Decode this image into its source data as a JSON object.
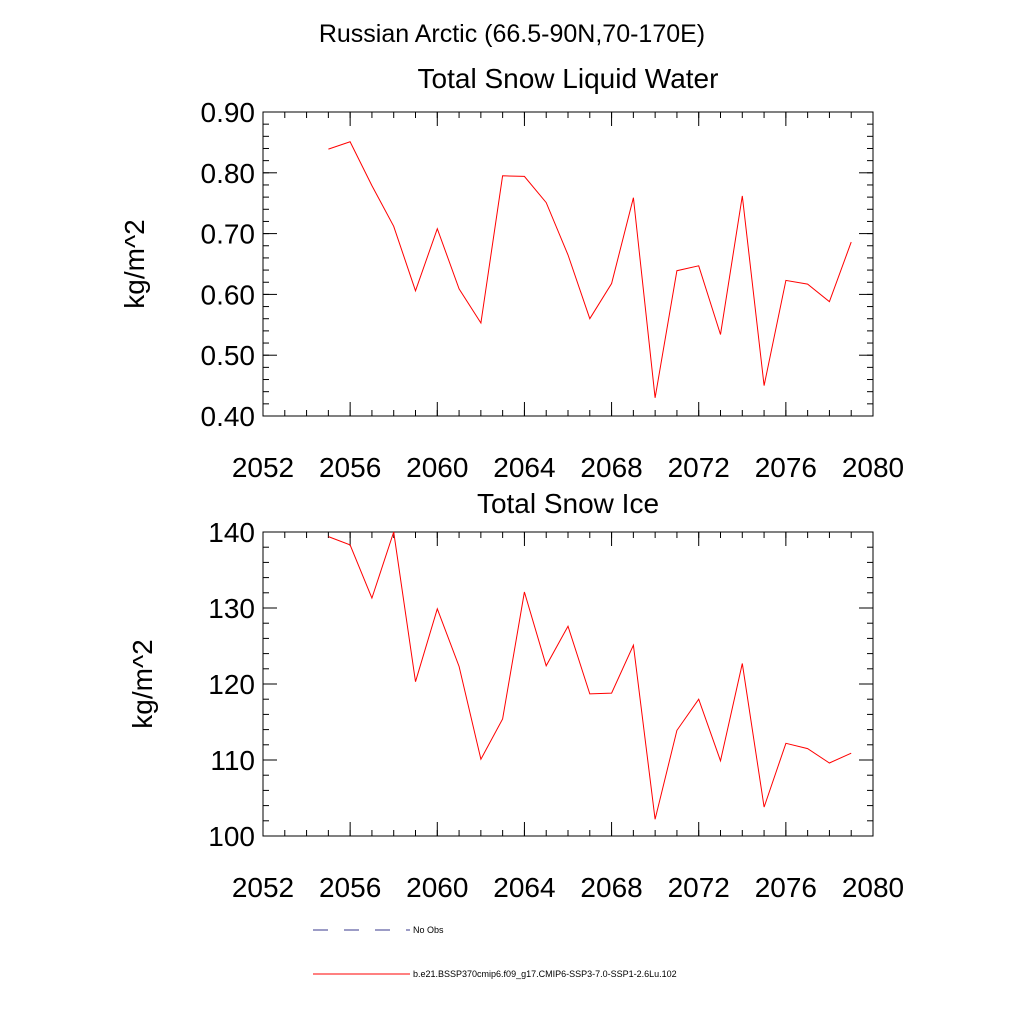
{
  "figure": {
    "title": "Russian Arctic (66.5-90N,70-170E)"
  },
  "legend": {
    "items": [
      {
        "label": "No Obs",
        "color": "#3a3a8c",
        "style": "dashed"
      },
      {
        "label": "b.e21.BSSP370cmip6.f09_g17.CMIP6-SSP3-7.0-SSP1-2.6Lu.102",
        "color": "#ff0000",
        "style": "solid"
      }
    ]
  },
  "chart_data": [
    {
      "type": "line",
      "title": "Total Snow Liquid Water",
      "xlabel": "",
      "ylabel": "kg/m^2",
      "xlim": [
        2052,
        2080
      ],
      "ylim": [
        0.4,
        0.9
      ],
      "xticks": [
        2052,
        2056,
        2060,
        2064,
        2068,
        2072,
        2076,
        2080
      ],
      "xtick_labels": [
        "2052",
        "2056",
        "2060",
        "2064",
        "2068",
        "2072",
        "2076",
        "2080"
      ],
      "xminor_step": 1,
      "yticks": [
        0.4,
        0.5,
        0.6,
        0.7,
        0.8,
        0.9
      ],
      "ytick_labels": [
        "0.40",
        "0.50",
        "0.60",
        "0.70",
        "0.80",
        "0.90"
      ],
      "yminor_step": 0.02,
      "grid": false,
      "series": [
        {
          "color": "#ff0000",
          "x": [
            2055,
            2056,
            2057,
            2058,
            2059,
            2060,
            2061,
            2062,
            2063,
            2064,
            2065,
            2066,
            2067,
            2068,
            2069,
            2070,
            2071,
            2072,
            2073,
            2074,
            2075,
            2076,
            2077,
            2078,
            2079
          ],
          "values": [
            0.839,
            0.851,
            0.779,
            0.712,
            0.606,
            0.708,
            0.609,
            0.553,
            0.795,
            0.794,
            0.751,
            0.665,
            0.56,
            0.618,
            0.759,
            0.43,
            0.639,
            0.647,
            0.534,
            0.762,
            0.45,
            0.623,
            0.617,
            0.588,
            0.686
          ]
        }
      ]
    },
    {
      "type": "line",
      "title": "Total Snow Ice",
      "xlabel": "",
      "ylabel": "kg/m^2",
      "xlim": [
        2052,
        2080
      ],
      "ylim": [
        100,
        140
      ],
      "xticks": [
        2052,
        2056,
        2060,
        2064,
        2068,
        2072,
        2076,
        2080
      ],
      "xtick_labels": [
        "2052",
        "2056",
        "2060",
        "2064",
        "2068",
        "2072",
        "2076",
        "2080"
      ],
      "xminor_step": 1,
      "yticks": [
        100,
        110,
        120,
        130,
        140
      ],
      "ytick_labels": [
        "100",
        "110",
        "120",
        "130",
        "140"
      ],
      "yminor_step": 2,
      "grid": false,
      "series": [
        {
          "color": "#ff0000",
          "x": [
            2055,
            2056,
            2057,
            2058,
            2059,
            2060,
            2061,
            2062,
            2063,
            2064,
            2065,
            2066,
            2067,
            2068,
            2069,
            2070,
            2071,
            2072,
            2073,
            2074,
            2075,
            2076,
            2077,
            2078,
            2079
          ],
          "values": [
            139.4,
            138.3,
            131.3,
            140.0,
            120.3,
            129.9,
            122.3,
            110.1,
            115.4,
            132.1,
            122.4,
            127.6,
            118.7,
            118.8,
            125.1,
            102.2,
            113.9,
            118.0,
            109.9,
            122.7,
            103.8,
            112.2,
            111.5,
            109.6,
            110.9
          ]
        }
      ]
    }
  ]
}
